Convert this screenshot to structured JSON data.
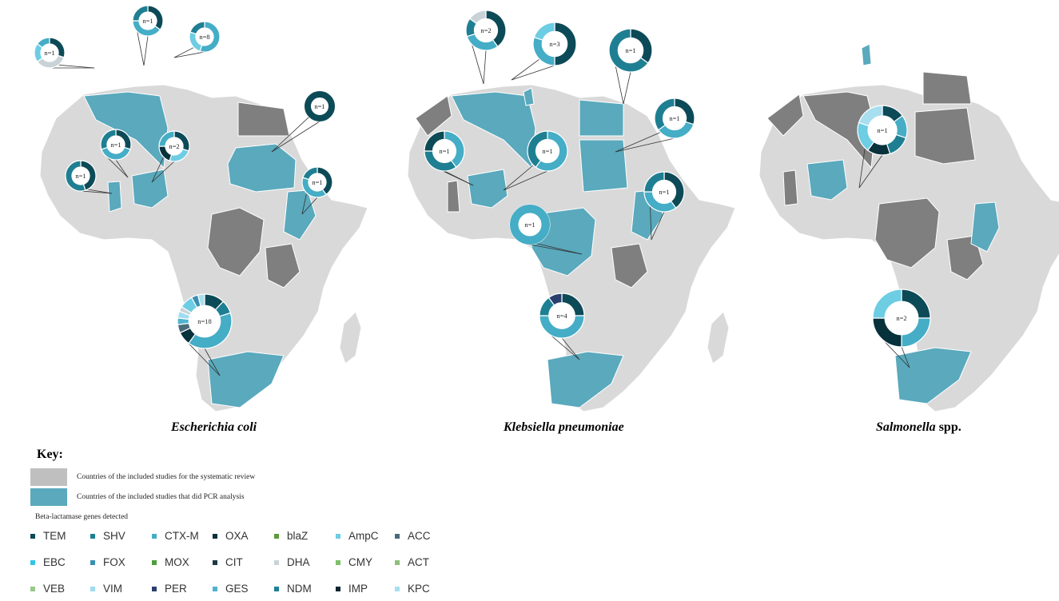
{
  "maps": [
    {
      "title_italic": "Escherichia coli",
      "title_rest": "",
      "pies": [
        {
          "label": "n=1",
          "slices": [
            [
              "TEM",
              30
            ],
            [
              "DHA",
              35
            ],
            [
              "AmpC",
              20
            ],
            [
              "CTX-M",
              15
            ]
          ]
        },
        {
          "label": "n=1",
          "slices": [
            [
              "TEM",
              35
            ],
            [
              "CTX-M",
              40
            ],
            [
              "SHV",
              25
            ]
          ]
        },
        {
          "label": "n=8",
          "slices": [
            [
              "CTX-M",
              55
            ],
            [
              "AmpC",
              25
            ],
            [
              "SHV",
              20
            ]
          ]
        },
        {
          "label": "n=1",
          "slices": [
            [
              "TEM",
              30
            ],
            [
              "CTX-M",
              40
            ],
            [
              "SHV",
              30
            ]
          ]
        },
        {
          "label": "n=2",
          "slices": [
            [
              "TEM",
              30
            ],
            [
              "AmpC",
              25
            ],
            [
              "OXA",
              20
            ],
            [
              "CTX-M",
              25
            ]
          ]
        },
        {
          "label": "n=1",
          "slices": [
            [
              "TEM",
              45
            ],
            [
              "SHV",
              55
            ]
          ]
        },
        {
          "label": "n=1",
          "slices": [
            [
              "TEM",
              100
            ]
          ]
        },
        {
          "label": "n=1",
          "slices": [
            [
              "TEM",
              40
            ],
            [
              "CTX-M",
              40
            ],
            [
              "SHV",
              20
            ]
          ]
        },
        {
          "label": "n=18",
          "slices": [
            [
              "TEM",
              12
            ],
            [
              "SHV",
              8
            ],
            [
              "CTX-M",
              40
            ],
            [
              "OXA",
              8
            ],
            [
              "ACC",
              5
            ],
            [
              "GES",
              4
            ],
            [
              "VIM",
              4
            ],
            [
              "DHA",
              3
            ],
            [
              "AmpC",
              8
            ],
            [
              "FOX",
              4
            ],
            [
              "KPC",
              4
            ]
          ]
        }
      ]
    },
    {
      "title_italic": "Klebsiella pneumoniae",
      "title_rest": "",
      "pies": [
        {
          "label": "n=2",
          "slices": [
            [
              "TEM",
              40
            ],
            [
              "CTX-M",
              30
            ],
            [
              "SHV",
              15
            ],
            [
              "DHA",
              15
            ]
          ]
        },
        {
          "label": "n=3",
          "slices": [
            [
              "TEM",
              50
            ],
            [
              "CTX-M",
              30
            ],
            [
              "AmpC",
              20
            ]
          ]
        },
        {
          "label": "n=1",
          "slices": [
            [
              "TEM",
              35
            ],
            [
              "SHV",
              65
            ]
          ]
        },
        {
          "label": "n=1",
          "slices": [
            [
              "TEM",
              30
            ],
            [
              "CTX-M",
              35
            ],
            [
              "SHV",
              35
            ]
          ]
        },
        {
          "label": "n=1",
          "slices": [
            [
              "CTX-M",
              40
            ],
            [
              "SHV",
              35
            ],
            [
              "TEM",
              25
            ]
          ]
        },
        {
          "label": "n=1",
          "slices": [
            [
              "CTX-M",
              60
            ],
            [
              "SHV",
              40
            ]
          ]
        },
        {
          "label": "n=1",
          "slices": [
            [
              "TEM",
              40
            ],
            [
              "CTX-M",
              35
            ],
            [
              "SHV",
              25
            ]
          ]
        },
        {
          "label": "n=1",
          "slices": [
            [
              "CTX-M",
              100
            ]
          ]
        },
        {
          "label": "n=4",
          "slices": [
            [
              "TEM",
              25
            ],
            [
              "CTX-M",
              50
            ],
            [
              "SHV",
              15
            ],
            [
              "PER",
              10
            ]
          ]
        }
      ]
    },
    {
      "title_italic": "Salmonella",
      "title_rest": " spp.",
      "pies": [
        {
          "label": "n=1",
          "slices": [
            [
              "TEM",
              15
            ],
            [
              "CTX-M",
              15
            ],
            [
              "SHV",
              15
            ],
            [
              "OXA",
              15
            ],
            [
              "AmpC",
              20
            ],
            [
              "KPC",
              20
            ]
          ]
        },
        {
          "label": "n=2",
          "slices": [
            [
              "TEM",
              25
            ],
            [
              "CTX-M",
              25
            ],
            [
              "OXA",
              25
            ],
            [
              "AmpC",
              25
            ]
          ]
        }
      ]
    }
  ],
  "key": {
    "title": "Key:",
    "gray_label": "Countries of the included studies for the systematic review",
    "teal_label": "Countries of the included studies that did PCR analysis",
    "genes_title": "Beta-lactamase genes detected",
    "genes": [
      {
        "name": "TEM",
        "color": "#0d4a57"
      },
      {
        "name": "SHV",
        "color": "#1f7f92"
      },
      {
        "name": "CTX-M",
        "color": "#45adc6"
      },
      {
        "name": "OXA",
        "color": "#07313b"
      },
      {
        "name": "blaZ",
        "color": "#5c9a3a"
      },
      {
        "name": "AmpC",
        "color": "#6ccde3"
      },
      {
        "name": "ACC",
        "color": "#4a6b78"
      },
      {
        "name": "EBC",
        "color": "#32c4e8"
      },
      {
        "name": "FOX",
        "color": "#3a8fb0"
      },
      {
        "name": "MOX",
        "color": "#4c9e3c"
      },
      {
        "name": "CIT",
        "color": "#1b3a44"
      },
      {
        "name": "DHA",
        "color": "#c9d3d7"
      },
      {
        "name": "CMY",
        "color": "#7fbf6a"
      },
      {
        "name": "ACT",
        "color": "#8dbf7a"
      },
      {
        "name": "VEB",
        "color": "#98c98a"
      },
      {
        "name": "VIM",
        "color": "#9fdcef"
      },
      {
        "name": "PER",
        "color": "#2a3f6e"
      },
      {
        "name": "GES",
        "color": "#4fb3d0"
      },
      {
        "name": "NDM",
        "color": "#1b8197"
      },
      {
        "name": "IMP",
        "color": "#0b2630"
      },
      {
        "name": "KPC",
        "color": "#a7def0"
      }
    ]
  },
  "colors": {
    "land_gray": "#d9d9d9",
    "dark_gray": "#7f7f7f",
    "teal": "#5aa9bd",
    "key_gray": "#bfbfbf"
  }
}
